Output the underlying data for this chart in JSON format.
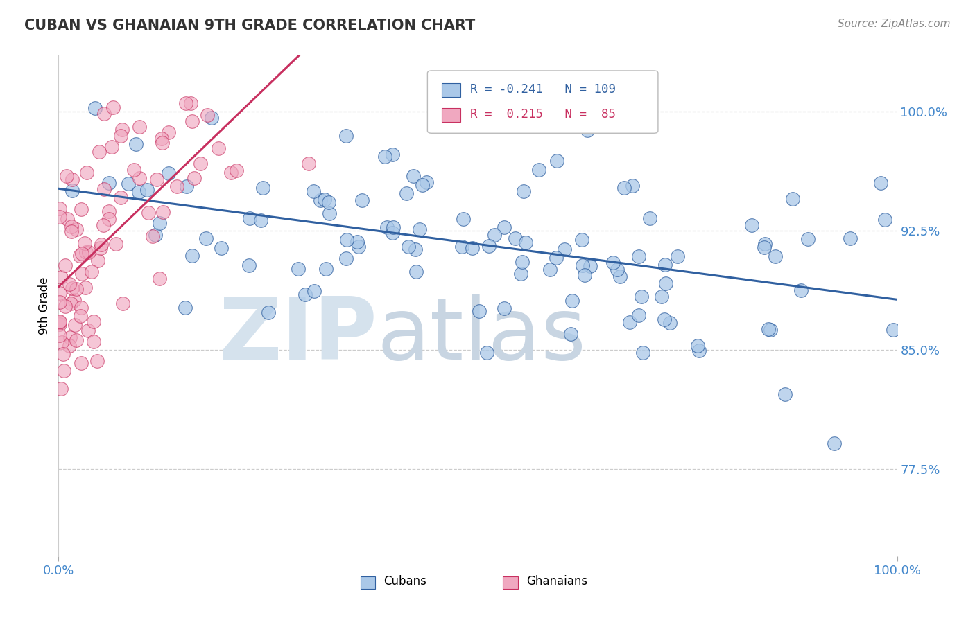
{
  "title": "CUBAN VS GHANAIAN 9TH GRADE CORRELATION CHART",
  "source": "Source: ZipAtlas.com",
  "ylabel": "9th Grade",
  "ytick_labels": [
    "77.5%",
    "85.0%",
    "92.5%",
    "100.0%"
  ],
  "ytick_values": [
    0.775,
    0.85,
    0.925,
    1.0
  ],
  "xlim": [
    0.0,
    1.0
  ],
  "ylim": [
    0.72,
    1.035
  ],
  "legend_r_blue": "-0.241",
  "legend_n_blue": "109",
  "legend_r_pink": "0.215",
  "legend_n_pink": "85",
  "legend_label_blue": "Cubans",
  "legend_label_pink": "Ghanaians",
  "blue_color": "#aac8e8",
  "pink_color": "#f0a8c0",
  "trendline_blue": "#3060a0",
  "trendline_pink": "#c83060",
  "watermark_zip": "ZIP",
  "watermark_atlas": "atlas",
  "watermark_color": "#d0dce8",
  "watermark_atlas_color": "#c0ccd8",
  "grid_color": "#cccccc",
  "title_color": "#333333",
  "axis_label_color": "#4488cc",
  "title_fontsize": 15,
  "source_fontsize": 11,
  "tick_fontsize": 13,
  "ylabel_fontsize": 12
}
